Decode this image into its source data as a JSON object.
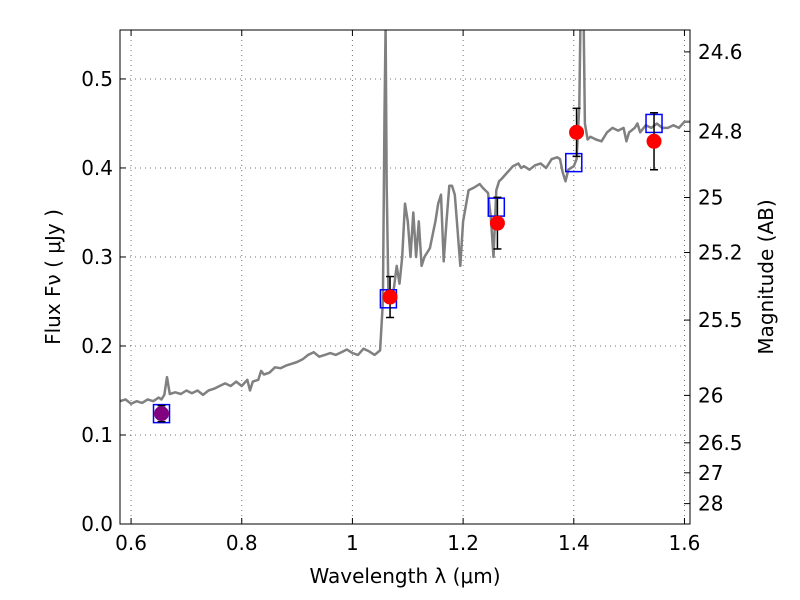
{
  "chart_data": {
    "type": "line",
    "title": "",
    "xlabel": "Wavelength  λ (μm)",
    "ylabel": "Flux  Fν  ( μJy )",
    "y2label": "Magnitude (AB)",
    "xlim": [
      0.58,
      1.61
    ],
    "ylim": [
      0.0,
      0.555
    ],
    "grid": true,
    "x_ticks": [
      {
        "v": 0.6,
        "label": "0.6"
      },
      {
        "v": 0.8,
        "label": "0.8"
      },
      {
        "v": 1.0,
        "label": "1"
      },
      {
        "v": 1.2,
        "label": "1.2"
      },
      {
        "v": 1.4,
        "label": "1.4"
      },
      {
        "v": 1.6,
        "label": "1.6"
      }
    ],
    "y_ticks": [
      {
        "v": 0.0,
        "label": "0.0"
      },
      {
        "v": 0.1,
        "label": "0.1"
      },
      {
        "v": 0.2,
        "label": "0.2"
      },
      {
        "v": 0.3,
        "label": "0.3"
      },
      {
        "v": 0.4,
        "label": "0.4"
      },
      {
        "v": 0.5,
        "label": "0.5"
      }
    ],
    "y2_ticks": [
      {
        "flux": 0.5304,
        "label": "24.6"
      },
      {
        "flux": 0.4411,
        "label": "24.8"
      },
      {
        "flux": 0.3668,
        "label": "25"
      },
      {
        "flux": 0.305,
        "label": "25.2"
      },
      {
        "flux": 0.2291,
        "label": "25.5"
      },
      {
        "flux": 0.1445,
        "label": "26"
      },
      {
        "flux": 0.0912,
        "label": "26.5"
      },
      {
        "flux": 0.0575,
        "label": "27"
      },
      {
        "flux": 0.0229,
        "label": "28"
      }
    ],
    "series": [
      {
        "kind": "model-spectrum",
        "color": "#808080",
        "points": [
          [
            0.58,
            0.138
          ],
          [
            0.59,
            0.14
          ],
          [
            0.6,
            0.135
          ],
          [
            0.61,
            0.138
          ],
          [
            0.62,
            0.136
          ],
          [
            0.63,
            0.14
          ],
          [
            0.64,
            0.138
          ],
          [
            0.65,
            0.142
          ],
          [
            0.655,
            0.14
          ],
          [
            0.66,
            0.145
          ],
          [
            0.665,
            0.165
          ],
          [
            0.67,
            0.146
          ],
          [
            0.68,
            0.148
          ],
          [
            0.69,
            0.146
          ],
          [
            0.7,
            0.15
          ],
          [
            0.71,
            0.147
          ],
          [
            0.72,
            0.15
          ],
          [
            0.73,
            0.145
          ],
          [
            0.74,
            0.15
          ],
          [
            0.75,
            0.152
          ],
          [
            0.76,
            0.155
          ],
          [
            0.77,
            0.158
          ],
          [
            0.78,
            0.155
          ],
          [
            0.79,
            0.16
          ],
          [
            0.8,
            0.155
          ],
          [
            0.81,
            0.162
          ],
          [
            0.815,
            0.15
          ],
          [
            0.82,
            0.16
          ],
          [
            0.83,
            0.162
          ],
          [
            0.835,
            0.172
          ],
          [
            0.84,
            0.168
          ],
          [
            0.85,
            0.17
          ],
          [
            0.86,
            0.176
          ],
          [
            0.87,
            0.175
          ],
          [
            0.88,
            0.178
          ],
          [
            0.89,
            0.18
          ],
          [
            0.9,
            0.182
          ],
          [
            0.91,
            0.185
          ],
          [
            0.92,
            0.19
          ],
          [
            0.93,
            0.193
          ],
          [
            0.94,
            0.188
          ],
          [
            0.95,
            0.19
          ],
          [
            0.96,
            0.192
          ],
          [
            0.97,
            0.19
          ],
          [
            0.98,
            0.193
          ],
          [
            0.99,
            0.196
          ],
          [
            1.0,
            0.192
          ],
          [
            1.01,
            0.19
          ],
          [
            1.02,
            0.197
          ],
          [
            1.03,
            0.194
          ],
          [
            1.04,
            0.19
          ],
          [
            1.05,
            0.195
          ],
          [
            1.055,
            0.25
          ],
          [
            1.058,
            0.46
          ],
          [
            1.06,
            0.56
          ],
          [
            1.062,
            0.38
          ],
          [
            1.065,
            0.26
          ],
          [
            1.07,
            0.255
          ],
          [
            1.075,
            0.265
          ],
          [
            1.08,
            0.29
          ],
          [
            1.085,
            0.27
          ],
          [
            1.09,
            0.3
          ],
          [
            1.095,
            0.36
          ],
          [
            1.1,
            0.34
          ],
          [
            1.105,
            0.3
          ],
          [
            1.11,
            0.35
          ],
          [
            1.115,
            0.3
          ],
          [
            1.12,
            0.34
          ],
          [
            1.125,
            0.29
          ],
          [
            1.13,
            0.3
          ],
          [
            1.14,
            0.31
          ],
          [
            1.15,
            0.34
          ],
          [
            1.155,
            0.36
          ],
          [
            1.16,
            0.37
          ],
          [
            1.165,
            0.295
          ],
          [
            1.17,
            0.34
          ],
          [
            1.175,
            0.38
          ],
          [
            1.18,
            0.38
          ],
          [
            1.185,
            0.37
          ],
          [
            1.19,
            0.33
          ],
          [
            1.195,
            0.29
          ],
          [
            1.2,
            0.34
          ],
          [
            1.21,
            0.375
          ],
          [
            1.22,
            0.378
          ],
          [
            1.23,
            0.382
          ],
          [
            1.235,
            0.378
          ],
          [
            1.24,
            0.375
          ],
          [
            1.245,
            0.372
          ],
          [
            1.25,
            0.345
          ],
          [
            1.255,
            0.3
          ],
          [
            1.26,
            0.375
          ],
          [
            1.265,
            0.385
          ],
          [
            1.27,
            0.388
          ],
          [
            1.28,
            0.395
          ],
          [
            1.29,
            0.402
          ],
          [
            1.3,
            0.405
          ],
          [
            1.305,
            0.4
          ],
          [
            1.31,
            0.402
          ],
          [
            1.32,
            0.398
          ],
          [
            1.33,
            0.403
          ],
          [
            1.34,
            0.405
          ],
          [
            1.35,
            0.4
          ],
          [
            1.36,
            0.41
          ],
          [
            1.37,
            0.412
          ],
          [
            1.375,
            0.41
          ],
          [
            1.38,
            0.395
          ],
          [
            1.385,
            0.385
          ],
          [
            1.39,
            0.398
          ],
          [
            1.4,
            0.402
          ],
          [
            1.405,
            0.41
          ],
          [
            1.41,
            0.47
          ],
          [
            1.412,
            0.56
          ],
          [
            1.418,
            0.56
          ],
          [
            1.42,
            0.45
          ],
          [
            1.425,
            0.432
          ],
          [
            1.43,
            0.435
          ],
          [
            1.44,
            0.432
          ],
          [
            1.45,
            0.43
          ],
          [
            1.46,
            0.44
          ],
          [
            1.47,
            0.445
          ],
          [
            1.48,
            0.442
          ],
          [
            1.49,
            0.445
          ],
          [
            1.495,
            0.43
          ],
          [
            1.5,
            0.44
          ],
          [
            1.51,
            0.445
          ],
          [
            1.515,
            0.45
          ],
          [
            1.52,
            0.44
          ],
          [
            1.53,
            0.448
          ],
          [
            1.54,
            0.445
          ],
          [
            1.55,
            0.45
          ],
          [
            1.56,
            0.445
          ],
          [
            1.57,
            0.445
          ],
          [
            1.58,
            0.448
          ],
          [
            1.59,
            0.445
          ],
          [
            1.6,
            0.452
          ],
          [
            1.61,
            0.452
          ]
        ]
      },
      {
        "kind": "model-photometry",
        "marker": "square",
        "color": "#0000ff",
        "points": [
          [
            0.655,
            0.124
          ],
          [
            1.065,
            0.253
          ],
          [
            1.26,
            0.356
          ],
          [
            1.4,
            0.406
          ],
          [
            1.545,
            0.45
          ]
        ]
      },
      {
        "kind": "observed",
        "marker": "circle",
        "color": "#ff0000",
        "points": [
          {
            "x": 1.068,
            "y": 0.255,
            "err": 0.023
          },
          {
            "x": 1.262,
            "y": 0.338,
            "err": 0.029
          },
          {
            "x": 1.405,
            "y": 0.44,
            "err": 0.027
          },
          {
            "x": 1.545,
            "y": 0.43,
            "err": 0.032
          }
        ]
      },
      {
        "kind": "observed-optical",
        "marker": "circle",
        "color": "#800080",
        "points": [
          {
            "x": 0.655,
            "y": 0.124,
            "err": 0.009
          }
        ]
      }
    ]
  }
}
